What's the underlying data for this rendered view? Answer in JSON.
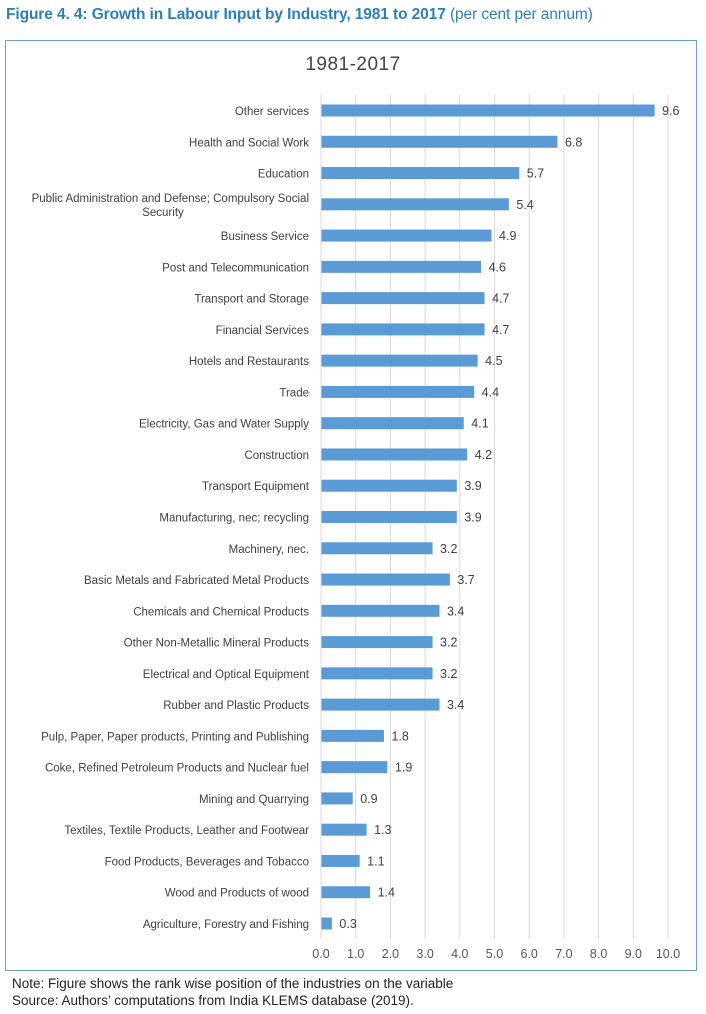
{
  "figure": {
    "title_main": "Figure 4. 4: Growth in Labour Input by Industry, 1981 to 2017",
    "title_unit": "(per cent per annum)",
    "note": "Note: Figure shows the rank wise position of the industries on the variable",
    "source": "Source: Authors’ computations from India KLEMS database (2019)."
  },
  "colors": {
    "bar": "#5b9bd5",
    "grid": "#d9d9d9",
    "title": "#2a7fb8"
  },
  "chart_data": {
    "type": "bar",
    "orientation": "horizontal",
    "title": "1981-2017",
    "xlabel": "",
    "ylabel": "",
    "xlim": [
      0,
      10
    ],
    "xticks": [
      "0.0",
      "1.0",
      "2.0",
      "3.0",
      "4.0",
      "5.0",
      "6.0",
      "7.0",
      "8.0",
      "9.0",
      "10.0"
    ],
    "grid": true,
    "categories": [
      "Other services",
      "Health and Social Work",
      "Education",
      "Public Administration and Defense; Compulsory Social Security",
      "Business Service",
      "Post and Telecommunication",
      "Transport and Storage",
      "Financial Services",
      "Hotels and Restaurants",
      "Trade",
      "Electricity, Gas and Water Supply",
      "Construction",
      "Transport Equipment",
      "Manufacturing, nec; recycling",
      "Machinery, nec.",
      "Basic Metals and Fabricated Metal Products",
      "Chemicals and Chemical Products",
      "Other Non-Metallic Mineral Products",
      "Electrical and Optical Equipment",
      "Rubber and Plastic Products",
      "Pulp, Paper, Paper products, Printing and Publishing",
      "Coke, Refined Petroleum Products and Nuclear fuel",
      "Mining and Quarrying",
      "Textiles, Textile Products, Leather and Footwear",
      "Food Products, Beverages and Tobacco",
      "Wood and Products of wood",
      "Agriculture, Forestry and Fishing"
    ],
    "values": [
      9.6,
      6.8,
      5.7,
      5.4,
      4.9,
      4.6,
      4.7,
      4.7,
      4.5,
      4.4,
      4.1,
      4.2,
      3.9,
      3.9,
      3.2,
      3.7,
      3.4,
      3.2,
      3.2,
      3.4,
      1.8,
      1.9,
      0.9,
      1.3,
      1.1,
      1.4,
      0.3
    ],
    "data_labels": [
      "9.6",
      "6.8",
      "5.7",
      "5.4",
      "4.9",
      "4.6",
      "4.7",
      "4.7",
      "4.5",
      "4.4",
      "4.1",
      "4.2",
      "3.9",
      "3.9",
      "3.2",
      "3.7",
      "3.4",
      "3.2",
      "3.2",
      "3.4",
      "1.8",
      "1.9",
      "0.9",
      "1.3",
      "1.1",
      "1.4",
      "0.3"
    ]
  }
}
